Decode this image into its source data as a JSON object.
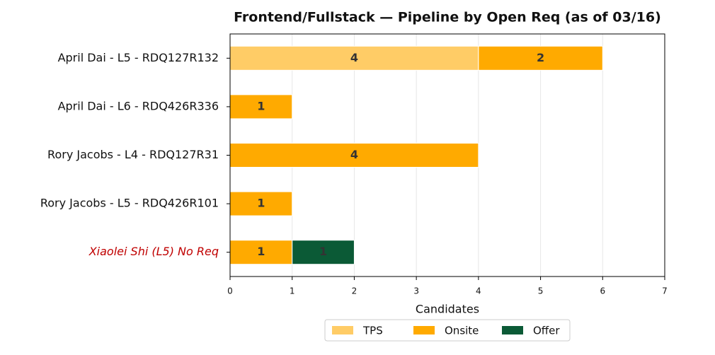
{
  "chart_data": {
    "type": "stacked-barh",
    "title": "Frontend/Fullstack — Pipeline by Open Req (as of 03/16)",
    "xlabel": "Candidates",
    "categories": [
      "April Dai - L5 - RDQ127R132",
      "April Dai - L6 - RDQ426R336",
      "Rory Jacobs - L4 - RDQ127R31",
      "Rory Jacobs - L5 - RDQ426R101",
      "Xiaolei Shi (L5) No Req"
    ],
    "category_styles": [
      null,
      null,
      null,
      null,
      {
        "color": "#c00000",
        "italic": true
      }
    ],
    "series": [
      {
        "name": "TPS",
        "color": "#ffcc66",
        "values": [
          4,
          null,
          null,
          null,
          null
        ]
      },
      {
        "name": "Onsite",
        "color": "#ffaa00",
        "values": [
          2,
          1,
          4,
          1,
          1
        ]
      },
      {
        "name": "Offer",
        "color": "#0b5a36",
        "values": [
          null,
          null,
          null,
          null,
          1
        ]
      }
    ],
    "xlim": [
      0,
      7
    ],
    "xticks": [
      0,
      1,
      2,
      3,
      4,
      5,
      6,
      7
    ],
    "grid": true,
    "legend": "bottom"
  }
}
